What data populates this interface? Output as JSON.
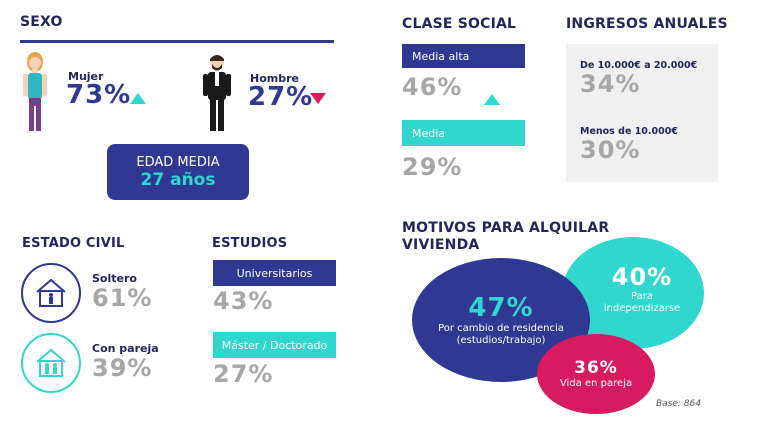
{
  "sexo": {
    "title": "SEXO",
    "mujer_label": "Mujer",
    "mujer_value": "73%",
    "hombre_label": "Hombre",
    "hombre_value": "27%",
    "edad_label": "EDAD MEDIA",
    "edad_value": "27 años"
  },
  "clase_social": {
    "title": "CLASE SOCIAL",
    "items": [
      {
        "label": "Media alta",
        "value": "46%"
      },
      {
        "label": "Media",
        "value": "29%"
      }
    ]
  },
  "ingresos": {
    "title": "INGRESOS ANUALES",
    "items": [
      {
        "label": "De 10.000€ a 20.000€",
        "value": "34%"
      },
      {
        "label": "Menos de 10.000€",
        "value": "30%"
      }
    ]
  },
  "estado_civil": {
    "title": "ESTADO CIVIL",
    "items": [
      {
        "label": "Soltero",
        "value": "61%",
        "icon": "house-single-icon"
      },
      {
        "label": "Con pareja",
        "value": "39%",
        "icon": "house-couple-icon"
      }
    ]
  },
  "estudios": {
    "title": "ESTUDIOS",
    "items": [
      {
        "label": "Universitarios",
        "value": "43%"
      },
      {
        "label": "Máster / Doctorado",
        "value": "27%"
      }
    ]
  },
  "motivos": {
    "title_line1": "MOTIVOS PARA ALQUILAR",
    "title_line2": "VIVIENDA",
    "items": [
      {
        "value": "47%",
        "label_line1": "Por cambio de residencia",
        "label_line2": "(estudios/trabajo)"
      },
      {
        "value": "40%",
        "label_line1": "Para",
        "label_line2": "independizarse"
      },
      {
        "value": "36%",
        "label_line1": "Vida en pareja",
        "label_line2": ""
      }
    ],
    "base": "Base: 864"
  },
  "colors": {
    "navy": "#2f3893",
    "teal": "#2fd7cf",
    "magenta": "#d81b60",
    "grey_text": "#a6a6a6",
    "panel_grey": "#f0f0f0"
  }
}
